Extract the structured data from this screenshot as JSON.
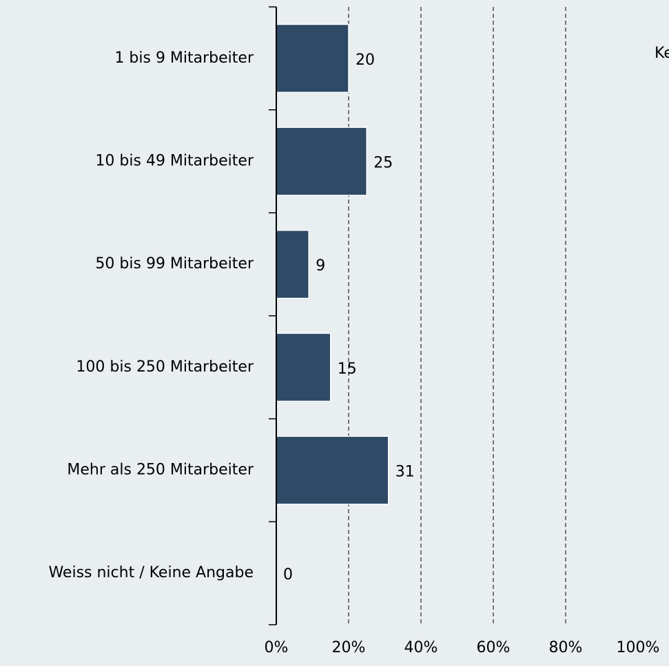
{
  "chart_data": {
    "type": "barh",
    "categories": [
      "1 bis 9 Mitarbeiter",
      "10 bis 49 Mitarbeiter",
      "50 bis 99 Mitarbeiter",
      "100 bis 250 Mitarbeiter",
      "Mehr als 250 Mitarbeiter",
      "Weiss nicht / Keine Angabe"
    ],
    "values": [
      20,
      25,
      9,
      15,
      31,
      0
    ],
    "color": "#2e4a66",
    "xlim": [
      0,
      100
    ],
    "xticks": [
      {
        "value": 0,
        "label": "0%"
      },
      {
        "value": 20,
        "label": "20%"
      },
      {
        "value": 40,
        "label": "40%"
      },
      {
        "value": 60,
        "label": "60%"
      },
      {
        "value": 80,
        "label": "80%"
      },
      {
        "value": 100,
        "label": "100%"
      }
    ],
    "grid": true,
    "legend_text": "Ke"
  }
}
